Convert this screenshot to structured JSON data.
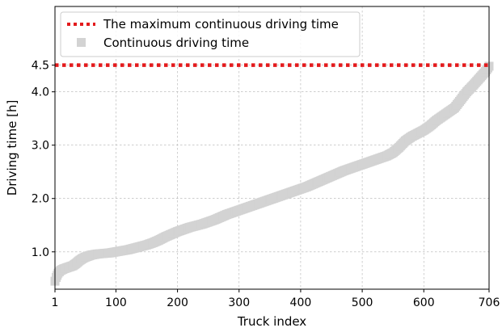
{
  "chart_data": {
    "type": "scatter",
    "xlabel": "Truck index",
    "ylabel": "Driving time [h]",
    "xlim": [
      1,
      706
    ],
    "ylim": [
      0.3,
      5.6
    ],
    "grid": true,
    "legend_position": "top-left",
    "xticks": [
      {
        "value": 1,
        "label": "1"
      },
      {
        "value": 100,
        "label": "100"
      },
      {
        "value": 200,
        "label": "200"
      },
      {
        "value": 300,
        "label": "300"
      },
      {
        "value": 400,
        "label": "400"
      },
      {
        "value": 500,
        "label": "500"
      },
      {
        "value": 600,
        "label": "600"
      },
      {
        "value": 706,
        "label": "706"
      }
    ],
    "yticks": [
      {
        "value": 1.0,
        "label": "1.0"
      },
      {
        "value": 2.0,
        "label": "2.0"
      },
      {
        "value": 3.0,
        "label": "3.0"
      },
      {
        "value": 4.0,
        "label": "4.0"
      },
      {
        "value": 4.5,
        "label": "4.5"
      }
    ],
    "series": [
      {
        "name": "The maximum continuous driving time",
        "kind": "hline",
        "value": 4.5,
        "color": "#e31a1c"
      },
      {
        "name": "Continuous driving time",
        "kind": "scatter",
        "color": "#d3d3d3",
        "points": [
          [
            1,
            0.45
          ],
          [
            3,
            0.52
          ],
          [
            6,
            0.6
          ],
          [
            10,
            0.65
          ],
          [
            15,
            0.68
          ],
          [
            20,
            0.7
          ],
          [
            25,
            0.72
          ],
          [
            30,
            0.74
          ],
          [
            35,
            0.78
          ],
          [
            40,
            0.83
          ],
          [
            45,
            0.87
          ],
          [
            50,
            0.9
          ],
          [
            55,
            0.92
          ],
          [
            60,
            0.94
          ],
          [
            70,
            0.96
          ],
          [
            80,
            0.97
          ],
          [
            90,
            0.98
          ],
          [
            100,
            1.0
          ],
          [
            110,
            1.02
          ],
          [
            120,
            1.04
          ],
          [
            130,
            1.07
          ],
          [
            140,
            1.1
          ],
          [
            150,
            1.13
          ],
          [
            160,
            1.17
          ],
          [
            170,
            1.22
          ],
          [
            180,
            1.28
          ],
          [
            190,
            1.33
          ],
          [
            200,
            1.38
          ],
          [
            210,
            1.42
          ],
          [
            220,
            1.46
          ],
          [
            230,
            1.49
          ],
          [
            240,
            1.52
          ],
          [
            250,
            1.56
          ],
          [
            260,
            1.6
          ],
          [
            270,
            1.65
          ],
          [
            280,
            1.7
          ],
          [
            290,
            1.74
          ],
          [
            300,
            1.78
          ],
          [
            310,
            1.82
          ],
          [
            320,
            1.86
          ],
          [
            330,
            1.9
          ],
          [
            340,
            1.94
          ],
          [
            350,
            1.98
          ],
          [
            360,
            2.02
          ],
          [
            370,
            2.06
          ],
          [
            380,
            2.1
          ],
          [
            390,
            2.14
          ],
          [
            400,
            2.18
          ],
          [
            410,
            2.22
          ],
          [
            420,
            2.27
          ],
          [
            430,
            2.32
          ],
          [
            440,
            2.37
          ],
          [
            450,
            2.42
          ],
          [
            460,
            2.47
          ],
          [
            470,
            2.52
          ],
          [
            480,
            2.56
          ],
          [
            490,
            2.6
          ],
          [
            500,
            2.64
          ],
          [
            510,
            2.68
          ],
          [
            520,
            2.72
          ],
          [
            530,
            2.76
          ],
          [
            540,
            2.8
          ],
          [
            550,
            2.86
          ],
          [
            560,
            2.96
          ],
          [
            570,
            3.08
          ],
          [
            580,
            3.16
          ],
          [
            590,
            3.22
          ],
          [
            600,
            3.28
          ],
          [
            610,
            3.36
          ],
          [
            620,
            3.46
          ],
          [
            630,
            3.54
          ],
          [
            640,
            3.62
          ],
          [
            650,
            3.7
          ],
          [
            660,
            3.85
          ],
          [
            670,
            4.0
          ],
          [
            680,
            4.12
          ],
          [
            690,
            4.25
          ],
          [
            700,
            4.38
          ],
          [
            706,
            4.48
          ]
        ]
      }
    ]
  }
}
